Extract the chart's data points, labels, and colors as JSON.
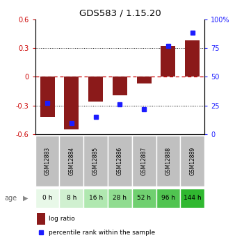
{
  "title": "GDS583 / 1.15.20",
  "samples": [
    "GSM12883",
    "GSM12884",
    "GSM12885",
    "GSM12886",
    "GSM12887",
    "GSM12888",
    "GSM12889"
  ],
  "ages": [
    "0 h",
    "8 h",
    "16 h",
    "28 h",
    "52 h",
    "96 h",
    "144 h"
  ],
  "log_ratio": [
    -0.42,
    -0.55,
    -0.26,
    -0.19,
    -0.07,
    0.32,
    0.38
  ],
  "percentile_rank": [
    27,
    10,
    15,
    26,
    22,
    77,
    88
  ],
  "ylim_left": [
    -0.6,
    0.6
  ],
  "ylim_right": [
    0,
    100
  ],
  "yticks_left": [
    -0.6,
    -0.3,
    0.0,
    0.3,
    0.6
  ],
  "ytick_labels_left": [
    "-0.6",
    "-0.3",
    "0",
    "0.3",
    "0.6"
  ],
  "yticks_right": [
    0,
    25,
    50,
    75,
    100
  ],
  "ytick_labels_right": [
    "0",
    "25",
    "50",
    "75",
    "100%"
  ],
  "bar_color": "#8B1A1A",
  "dot_color": "#1C1CFF",
  "hline_color": "#CC0000",
  "dotline_color": "black",
  "age_colors": [
    "#e8f8e8",
    "#d0f0d0",
    "#b0e8b0",
    "#90dc90",
    "#70d070",
    "#50c450",
    "#30b830"
  ],
  "sample_bg": "#c0c0c0",
  "legend_log_ratio": "log ratio",
  "legend_percentile": "percentile rank within the sample",
  "age_label": "age",
  "bar_width": 0.6
}
